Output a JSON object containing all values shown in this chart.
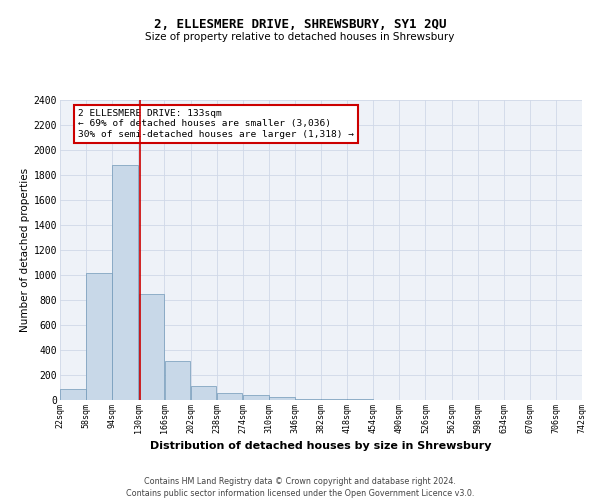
{
  "title": "2, ELLESMERE DRIVE, SHREWSBURY, SY1 2QU",
  "subtitle": "Size of property relative to detached houses in Shrewsbury",
  "xlabel": "Distribution of detached houses by size in Shrewsbury",
  "ylabel": "Number of detached properties",
  "footnote1": "Contains HM Land Registry data © Crown copyright and database right 2024.",
  "footnote2": "Contains public sector information licensed under the Open Government Licence v3.0.",
  "annotation_line1": "2 ELLESMERE DRIVE: 133sqm",
  "annotation_line2": "← 69% of detached houses are smaller (3,036)",
  "annotation_line3": "30% of semi-detached houses are larger (1,318) →",
  "bar_color": "#c8d8e8",
  "bar_edge_color": "#7098b8",
  "redline_color": "#cc0000",
  "redline_x": 133,
  "bin_edges": [
    22,
    58,
    94,
    130,
    166,
    202,
    238,
    274,
    310,
    346,
    382,
    418,
    454,
    490,
    526,
    562,
    598,
    634,
    670,
    706,
    742
  ],
  "bar_heights": [
    85,
    1020,
    1880,
    850,
    310,
    115,
    55,
    40,
    25,
    10,
    5,
    5,
    2,
    2,
    1,
    1,
    1,
    0,
    0,
    0
  ],
  "ylim": [
    0,
    2400
  ],
  "yticks": [
    0,
    200,
    400,
    600,
    800,
    1000,
    1200,
    1400,
    1600,
    1800,
    2000,
    2200,
    2400
  ],
  "grid_color": "#d0d8e8",
  "bg_color": "#eef2f8"
}
